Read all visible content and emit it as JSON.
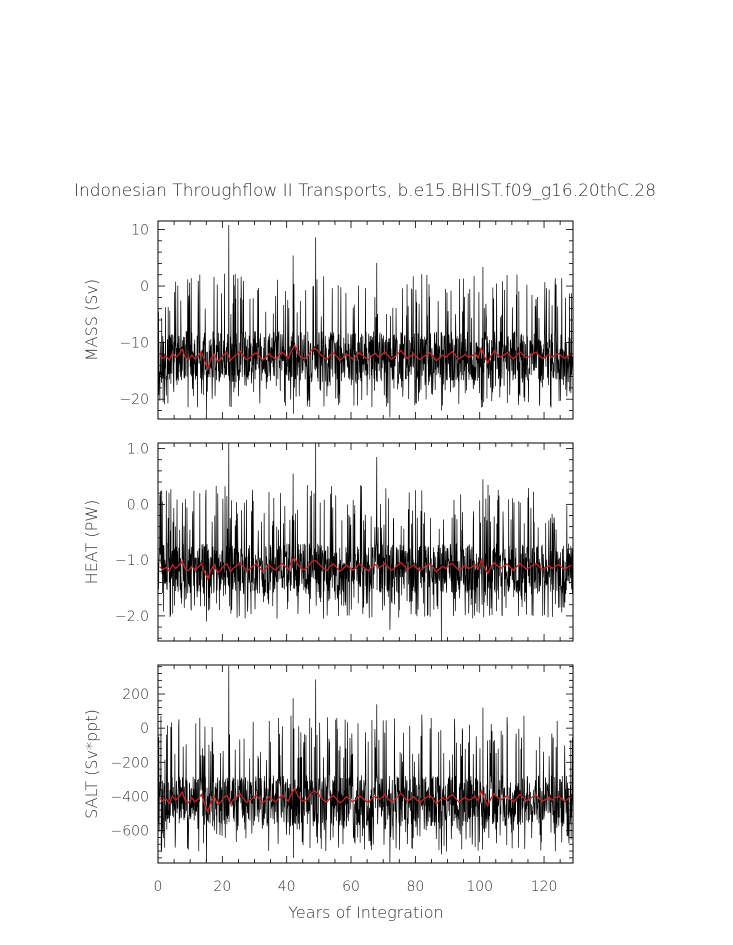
{
  "chart_data": [
    {
      "type": "line",
      "title": "Indonesian Throughflow II Transports, b.e15.BHIST.f09_g16.20thC.28",
      "ylabel": "MASS (Sv)",
      "xlabel": "",
      "xlim": [
        0,
        129
      ],
      "ylim": [
        -23.5,
        11.5
      ],
      "yticks": [
        10,
        0,
        -10,
        -20
      ],
      "ytick_labels": [
        "10",
        "0",
        "−10",
        "−20"
      ],
      "baseline": -12.5,
      "spike_scale": 7.5,
      "series": [
        {
          "color": "#000000",
          "resolution": "monthly",
          "peaks": [
            [
              22,
              10.8
            ],
            [
              49,
              8.6
            ],
            [
              42,
              5.4
            ],
            [
              68,
              4.1
            ],
            [
              101,
              3.4
            ],
            [
              13,
              2.0
            ],
            [
              82,
              2.1
            ]
          ],
          "troughs": [
            [
              15,
              -22.8
            ],
            [
              42,
              -22.6
            ],
            [
              72,
              -23.2
            ],
            [
              88,
              -22.0
            ],
            [
              56,
              -21.0
            ],
            [
              112,
              -21.0
            ]
          ]
        },
        {
          "color": "#cc2222",
          "resolution": "annual",
          "values": [
            -12.3,
            -12.8,
            -12.4,
            -13.1,
            -11.9,
            -12.6,
            -12.1,
            -11.2,
            -12.7,
            -13.0,
            -12.2,
            -12.9,
            -12.4,
            -11.6,
            -13.3,
            -14.6,
            -12.8,
            -12.0,
            -13.4,
            -12.9,
            -12.1,
            -11.8,
            -13.2,
            -12.5,
            -12.1,
            -11.5,
            -12.3,
            -13.0,
            -12.7,
            -12.2,
            -11.8,
            -12.4,
            -13.1,
            -12.6,
            -12.0,
            -12.5,
            -12.9,
            -12.3,
            -11.7,
            -12.2,
            -12.8,
            -11.4,
            -10.5,
            -11.9,
            -12.6,
            -12.8,
            -12.4,
            -11.5,
            -11.0,
            -11.3,
            -12.1,
            -12.6,
            -13.0,
            -12.2,
            -11.8,
            -12.4,
            -13.1,
            -12.7,
            -12.0,
            -12.4,
            -12.9,
            -12.5,
            -11.8,
            -12.2,
            -12.7,
            -13.0,
            -12.3,
            -11.9,
            -12.5,
            -12.2,
            -11.6,
            -12.3,
            -12.9,
            -12.6,
            -12.0,
            -11.4,
            -12.1,
            -12.8,
            -12.4,
            -12.0,
            -12.6,
            -13.0,
            -12.5,
            -12.1,
            -11.8,
            -12.4,
            -13.2,
            -12.7,
            -12.2,
            -12.6,
            -12.0,
            -11.6,
            -12.3,
            -12.9,
            -12.5,
            -12.1,
            -12.6,
            -12.4,
            -11.9,
            -12.7,
            -11.0,
            -12.5,
            -13.6,
            -12.3,
            -11.5,
            -12.1,
            -12.6,
            -12.2,
            -11.8,
            -12.4,
            -12.9,
            -12.3,
            -11.6,
            -12.2,
            -12.7,
            -12.4,
            -12.0,
            -11.7,
            -12.3,
            -12.8,
            -12.5,
            -12.1,
            -12.6,
            -12.2,
            -11.9,
            -12.4,
            -12.8,
            -12.3,
            -12.0
          ]
        }
      ]
    },
    {
      "type": "line",
      "title": "",
      "ylabel": "HEAT (PW)",
      "xlabel": "",
      "xlim": [
        0,
        129
      ],
      "ylim": [
        -2.45,
        1.1
      ],
      "yticks": [
        1.0,
        0.0,
        -1.0,
        -2.0
      ],
      "ytick_labels": [
        "1.0",
        "0.0",
        "−1.0",
        "−2.0"
      ],
      "baseline": -1.15,
      "spike_scale": 0.75,
      "series": [
        {
          "color": "#000000",
          "resolution": "monthly",
          "peaks": [
            [
              22,
              1.1
            ],
            [
              49,
              1.1
            ],
            [
              42,
              0.55
            ],
            [
              68,
              0.85
            ],
            [
              101,
              0.45
            ],
            [
              13,
              0.2
            ],
            [
              82,
              0.25
            ]
          ],
          "troughs": [
            [
              88,
              -2.45
            ],
            [
              72,
              -2.25
            ],
            [
              15,
              -2.1
            ],
            [
              56,
              -2.0
            ],
            [
              112,
              -2.0
            ]
          ]
        },
        {
          "color": "#cc2222",
          "resolution": "annual",
          "values": [
            -1.12,
            -1.17,
            -1.13,
            -1.2,
            -1.08,
            -1.15,
            -1.1,
            -1.02,
            -1.16,
            -1.19,
            -1.11,
            -1.18,
            -1.13,
            -1.06,
            -1.22,
            -1.34,
            -1.17,
            -1.09,
            -1.23,
            -1.18,
            -1.1,
            -1.07,
            -1.21,
            -1.14,
            -1.1,
            -1.05,
            -1.12,
            -1.19,
            -1.16,
            -1.11,
            -1.07,
            -1.13,
            -1.2,
            -1.15,
            -1.09,
            -1.14,
            -1.18,
            -1.12,
            -1.06,
            -1.11,
            -1.17,
            -1.04,
            -0.96,
            -1.08,
            -1.15,
            -1.17,
            -1.13,
            -1.05,
            -1.0,
            -1.03,
            -1.1,
            -1.15,
            -1.19,
            -1.11,
            -1.07,
            -1.13,
            -1.2,
            -1.16,
            -1.09,
            -1.13,
            -1.18,
            -1.14,
            -1.07,
            -1.11,
            -1.16,
            -1.19,
            -1.12,
            -1.08,
            -1.14,
            -1.11,
            -1.06,
            -1.12,
            -1.18,
            -1.15,
            -1.09,
            -1.04,
            -1.1,
            -1.17,
            -1.13,
            -1.09,
            -1.15,
            -1.19,
            -1.14,
            -1.1,
            -1.07,
            -1.13,
            -1.21,
            -1.16,
            -1.11,
            -1.15,
            -1.09,
            -1.06,
            -1.12,
            -1.18,
            -1.14,
            -1.1,
            -1.15,
            -1.13,
            -1.08,
            -1.16,
            -1.0,
            -1.14,
            -1.24,
            -1.12,
            -1.05,
            -1.1,
            -1.15,
            -1.11,
            -1.07,
            -1.13,
            -1.18,
            -1.12,
            -1.06,
            -1.11,
            -1.16,
            -1.13,
            -1.09,
            -1.06,
            -1.12,
            -1.17,
            -1.14,
            -1.1,
            -1.15,
            -1.11,
            -1.08,
            -1.13,
            -1.17,
            -1.12,
            -1.09
          ]
        }
      ]
    },
    {
      "type": "line",
      "title": "",
      "ylabel": "SALT (Sv*ppt)",
      "xlabel": "Years of Integration",
      "xlim": [
        0,
        129
      ],
      "ylim": [
        -790,
        370
      ],
      "yticks": [
        200,
        0,
        -200,
        -400,
        -600
      ],
      "ytick_labels": [
        "200",
        "0",
        "−200",
        "−400",
        "−600"
      ],
      "xticks": [
        0,
        20,
        40,
        60,
        80,
        100,
        120
      ],
      "xtick_labels": [
        "0",
        "20",
        "40",
        "60",
        "80",
        "100",
        "120"
      ],
      "baseline": -425,
      "spike_scale": 250,
      "series": [
        {
          "color": "#000000",
          "resolution": "monthly",
          "peaks": [
            [
              22,
              365
            ],
            [
              49,
              285
            ],
            [
              42,
              175
            ],
            [
              68,
              140
            ],
            [
              101,
              120
            ],
            [
              13,
              60
            ],
            [
              82,
              80
            ]
          ],
          "troughs": [
            [
              15,
              -780
            ],
            [
              42,
              -760
            ],
            [
              72,
              -785
            ],
            [
              88,
              -740
            ],
            [
              56,
              -700
            ],
            [
              112,
              -700
            ]
          ]
        },
        {
          "color": "#cc2222",
          "resolution": "annual",
          "values": [
            -410,
            -428,
            -415,
            -440,
            -398,
            -422,
            -405,
            -375,
            -425,
            -435,
            -408,
            -432,
            -415,
            -388,
            -445,
            -490,
            -428,
            -400,
            -448,
            -432,
            -405,
            -395,
            -442,
            -418,
            -405,
            -385,
            -412,
            -435,
            -425,
            -408,
            -395,
            -415,
            -438,
            -422,
            -402,
            -418,
            -432,
            -412,
            -392,
            -408,
            -428,
            -382,
            -352,
            -398,
            -422,
            -428,
            -415,
            -385,
            -368,
            -378,
            -405,
            -422,
            -435,
            -408,
            -395,
            -415,
            -438,
            -425,
            -402,
            -415,
            -432,
            -418,
            -395,
            -408,
            -425,
            -435,
            -412,
            -398,
            -418,
            -408,
            -388,
            -412,
            -432,
            -422,
            -402,
            -382,
            -405,
            -428,
            -415,
            -402,
            -422,
            -435,
            -418,
            -405,
            -395,
            -415,
            -442,
            -425,
            -408,
            -422,
            -402,
            -388,
            -412,
            -432,
            -418,
            -405,
            -422,
            -415,
            -398,
            -425,
            -368,
            -418,
            -455,
            -412,
            -385,
            -405,
            -422,
            -408,
            -395,
            -415,
            -432,
            -412,
            -388,
            -408,
            -425,
            -415,
            -402,
            -392,
            -412,
            -428,
            -418,
            -405,
            -422,
            -408,
            -398,
            -415,
            -428,
            -412,
            -402
          ]
        }
      ]
    }
  ]
}
